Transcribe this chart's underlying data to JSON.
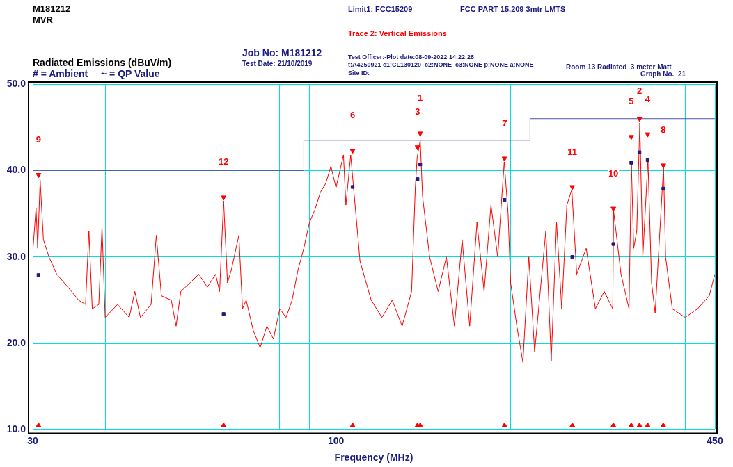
{
  "chart_data": {
    "type": "line",
    "title": "Radiated Emissions (dBuV/m)",
    "xlabel": "Frequency (MHz)",
    "log": "x",
    "grid": true,
    "legend": false,
    "xlim": [
      30,
      450
    ],
    "xticks": [
      30,
      {
        "value": 40,
        "label": null
      },
      {
        "value": 50,
        "label": null
      },
      {
        "value": 60,
        "label": null
      },
      {
        "value": 70,
        "label": null
      },
      {
        "value": 80,
        "label": null
      },
      {
        "value": 90,
        "label": null
      },
      100,
      {
        "value": 200,
        "label": null
      },
      {
        "value": 300,
        "label": null
      },
      {
        "value": 400,
        "label": null
      },
      450
    ],
    "ylim": [
      10,
      50
    ],
    "yticks": [
      {
        "value": 10,
        "label": "10.0"
      },
      {
        "value": 20,
        "label": "20.0"
      },
      {
        "value": 30,
        "label": "30.0"
      },
      {
        "value": 40,
        "label": "40.0"
      },
      {
        "value": 50,
        "label": "50.0"
      }
    ],
    "series": [
      {
        "color": "#ff0000",
        "x": [
          30,
          30.4,
          30.6,
          30.9,
          31.3,
          32,
          33,
          34,
          35,
          36,
          37,
          37.5,
          38,
          39,
          39.5,
          40,
          42,
          44,
          45,
          46,
          48,
          49,
          50,
          52,
          53,
          54,
          56,
          58,
          60,
          62,
          63,
          64,
          65,
          66,
          68,
          69,
          70,
          72,
          74,
          76,
          78,
          80,
          82,
          84,
          86,
          88,
          90,
          92,
          94,
          96,
          98,
          100,
          103,
          104,
          106,
          110,
          115,
          120,
          125,
          130,
          135,
          137,
          138,
          139.7,
          141,
          145,
          150,
          155,
          160,
          165,
          170,
          175,
          180,
          185,
          190,
          195,
          198,
          200,
          205,
          210,
          215,
          220,
          230,
          235,
          240,
          245,
          250,
          255,
          260,
          270,
          280,
          290,
          300,
          301,
          310,
          320,
          323,
          326,
          330,
          334,
          338,
          345,
          350,
          355,
          367,
          370,
          380,
          400,
          420,
          440,
          450
        ],
        "values": [
          30.5,
          35.7,
          31,
          38.9,
          32,
          30,
          28,
          27,
          26,
          25,
          24.5,
          33,
          24,
          24.5,
          33.5,
          23,
          24.5,
          23,
          26,
          23,
          24.5,
          32.5,
          25.5,
          25,
          22,
          26,
          27,
          28,
          26.5,
          28,
          26,
          36.5,
          27,
          28.5,
          32.5,
          24,
          25,
          21.5,
          19.5,
          22,
          20.5,
          24,
          23,
          25,
          28.5,
          31,
          34,
          35.5,
          37.5,
          38.5,
          40.5,
          38,
          41.8,
          36,
          41.8,
          29.5,
          25,
          23,
          25,
          22,
          26,
          38,
          41.5,
          43.5,
          37,
          30,
          26,
          30,
          22,
          32,
          22,
          34,
          26,
          36,
          30,
          41,
          35,
          27,
          22,
          17.8,
          30,
          19,
          33,
          18,
          34,
          24,
          36,
          37.8,
          28,
          31,
          24,
          26,
          24,
          35.3,
          28,
          24,
          40.8,
          31,
          33,
          45.5,
          30,
          41.2,
          27,
          23.5,
          40.4,
          30,
          24,
          23,
          24,
          25.5,
          28
        ]
      },
      {
        "color": "#5050aa",
        "x": [
          30,
          30,
          88,
          88,
          216,
          216,
          450
        ],
        "values": [
          50,
          40,
          40,
          43.5,
          43.5,
          46,
          46
        ]
      },
      {
        "type": "scatter",
        "color": "#1a1a80",
        "marker": "square",
        "x": [
          30.7,
          64,
          106.8,
          138.2,
          139.7,
          195.2,
          255.5,
          300.7,
          322.9,
          333.6,
          344.6,
          366.7
        ],
        "values": [
          27.9,
          23.4,
          38.1,
          39,
          40.7,
          36.6,
          30,
          31.5,
          40.9,
          42.1,
          41.2,
          37.9
        ]
      },
      {
        "type": "scatter",
        "color": "#ff0000",
        "marker": "triangle",
        "x": [
          30.7,
          64,
          106.8,
          138.2,
          139.7,
          195.2,
          255.5,
          300.7,
          322.9,
          333.6,
          344.6,
          366.7
        ],
        "values": [
          39.5,
          36.9,
          42.3,
          42.7,
          44.3,
          41.4,
          38.1,
          35.6,
          43.9,
          46,
          44.2,
          40.6
        ]
      },
      {
        "type": "scatter",
        "color": "#ff0000",
        "marker": "triangle",
        "x": [
          30.7,
          64,
          106.8,
          138.2,
          139.7,
          195.2,
          255.5,
          300.7,
          322.9,
          333.6,
          344.6,
          366.7
        ],
        "values": [
          10.5,
          10.5,
          10.5,
          10.5,
          10.5,
          10.5,
          10.5,
          10.5,
          10.5,
          10.5,
          10.5,
          10.5
        ]
      }
    ],
    "annotations": [
      "M181212",
      "MVR",
      "Limit1: FCC15209",
      "FCC PART 15.209 3mtr LMTS",
      "Trace 2: Vertical Emissions",
      "Job No: M181212",
      "Test Date: 21/10/2019",
      "Test Officer:-Plot date:08-09-2022 14:22:28",
      "t:A4250921 c1:CL130120  c2:NONE  c3:NONE p:NONE a:NONE",
      "Site ID:",
      "Room 13 Radiated  3 meter Matt",
      "Graph No.  21",
      "# = Ambient",
      "~ = QP Value",
      "9",
      "12",
      "6",
      "3",
      "1",
      "7",
      "11",
      "10",
      "5",
      "2",
      "4",
      "8"
    ]
  }
}
